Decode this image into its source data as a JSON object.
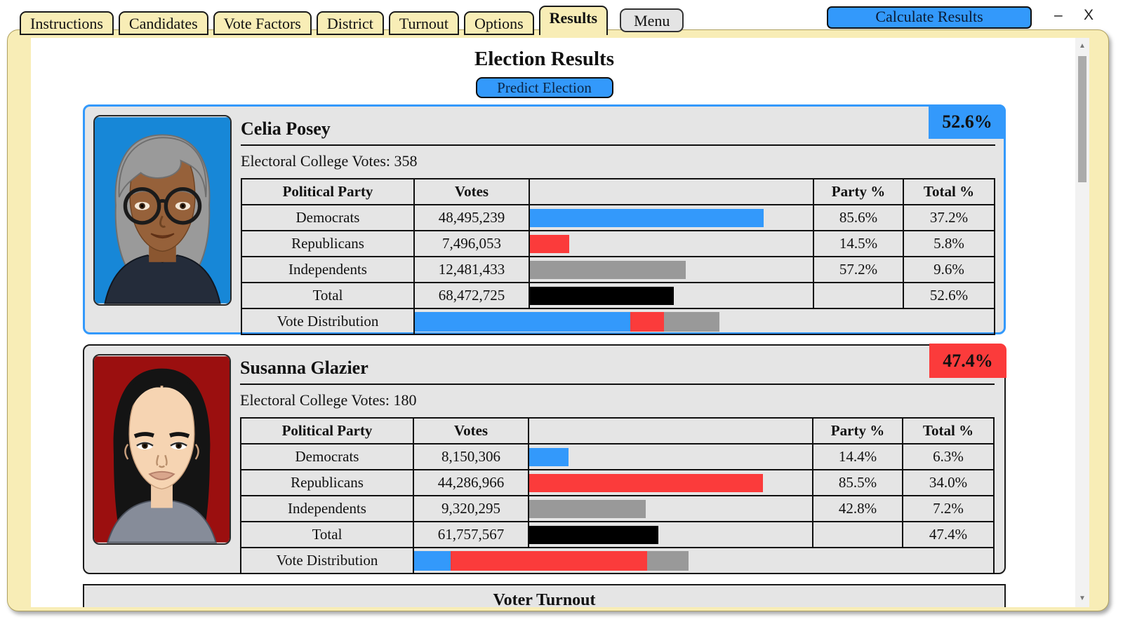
{
  "window": {
    "minimize_label": "–",
    "close_label": "X"
  },
  "icons": {
    "scroll_up": "▲",
    "scroll_down": "▼"
  },
  "tabs": [
    {
      "label": "Instructions",
      "selected": false
    },
    {
      "label": "Candidates",
      "selected": false
    },
    {
      "label": "Vote Factors",
      "selected": false
    },
    {
      "label": "District",
      "selected": false
    },
    {
      "label": "Turnout",
      "selected": false
    },
    {
      "label": "Options",
      "selected": false
    },
    {
      "label": "Results",
      "selected": true
    }
  ],
  "menu_button_label": "Menu",
  "calculate_button_label": "Calculate Results",
  "page": {
    "title": "Election Results",
    "predict_button_label": "Predict Election"
  },
  "table_headers": {
    "party": "Political Party",
    "votes": "Votes",
    "bar": "",
    "party_pct": "Party %",
    "total_pct": "Total %"
  },
  "vote_distribution_label": "Vote Distribution",
  "electoral_label": "Electoral College Votes:",
  "colors": {
    "accent_blue": "#3399fb",
    "accent_red": "#fb3b3b",
    "independent_gray": "#999999",
    "total_black": "#000000",
    "tab_yellow": "#f8edb6",
    "card_gray": "#e5e5e5",
    "avatar_blue_bg": "#1787d7",
    "avatar_red_bg": "#9b0f0f"
  },
  "candidates": [
    {
      "name": "Celia Posey",
      "overall_pct": "52.6%",
      "electoral_votes": "358",
      "rows": [
        {
          "party": "Democrats",
          "votes": "48,495,239",
          "party_pct": "85.6%",
          "total_pct": "37.2%"
        },
        {
          "party": "Republicans",
          "votes": "7,496,053",
          "party_pct": "14.5%",
          "total_pct": "5.8%"
        },
        {
          "party": "Independents",
          "votes": "12,481,433",
          "party_pct": "57.2%",
          "total_pct": "9.6%"
        }
      ],
      "total": {
        "party": "Total",
        "votes": "68,472,725",
        "party_pct": "",
        "total_pct": "52.6%"
      },
      "dist": {
        "width": "52.6%",
        "dem": "70.8%",
        "rep": "11.0%",
        "ind": "18.2%"
      }
    },
    {
      "name": "Susanna Glazier",
      "overall_pct": "47.4%",
      "electoral_votes": "180",
      "rows": [
        {
          "party": "Democrats",
          "votes": "8,150,306",
          "party_pct": "14.4%",
          "total_pct": "6.3%"
        },
        {
          "party": "Republicans",
          "votes": "44,286,966",
          "party_pct": "85.5%",
          "total_pct": "34.0%"
        },
        {
          "party": "Independents",
          "votes": "9,320,295",
          "party_pct": "42.8%",
          "total_pct": "7.2%"
        }
      ],
      "total": {
        "party": "Total",
        "votes": "61,757,567",
        "party_pct": "",
        "total_pct": "47.4%"
      },
      "dist": {
        "width": "47.4%",
        "dem": "13.2%",
        "rep": "71.7%",
        "ind": "15.1%"
      }
    }
  ],
  "turnout_section": {
    "title": "Voter Turnout"
  }
}
